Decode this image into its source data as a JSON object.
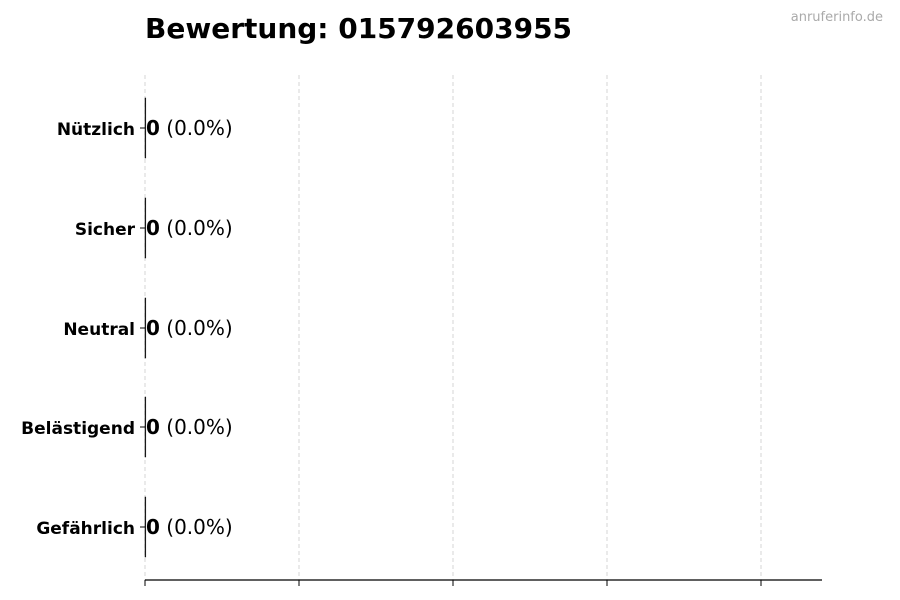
{
  "title": "Bewertung: 015792603955",
  "watermark": "anruferinfo.de",
  "chart_data": {
    "type": "bar",
    "orientation": "horizontal",
    "title": "Bewertung: 015792603955",
    "categories": [
      "Nützlich",
      "Sicher",
      "Neutral",
      "Belästigend",
      "Gefährlich"
    ],
    "values": [
      0,
      0,
      0,
      0,
      0
    ],
    "labels": [
      {
        "count": "0",
        "percent": "(0.0%)"
      },
      {
        "count": "0",
        "percent": "(0.0%)"
      },
      {
        "count": "0",
        "percent": "(0.0%)"
      },
      {
        "count": "0",
        "percent": "(0.0%)"
      },
      {
        "count": "0",
        "percent": "(0.0%)"
      }
    ],
    "xlabel": "",
    "ylabel": "",
    "x_tick_labels_shown": false,
    "grid": "x dashed",
    "colors": {
      "bar_edge": "#000000",
      "grid": "#cccccc",
      "watermark": "#aaaaaa"
    }
  }
}
